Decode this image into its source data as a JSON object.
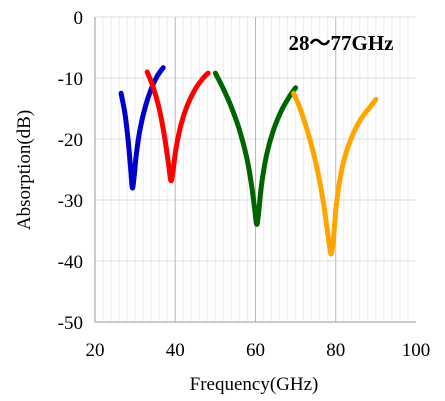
{
  "chart_data": {
    "type": "line",
    "title": "28～77GHz",
    "xlabel": "Frequency(GHz)",
    "ylabel": "Absorption(dB)",
    "xlim": [
      20,
      100
    ],
    "ylim": [
      -50,
      0
    ],
    "x_ticks": [
      "20",
      "40",
      "60",
      "80",
      "100"
    ],
    "y_ticks": [
      "0",
      "-10",
      "-20",
      "-30",
      "-40",
      "-50"
    ],
    "grid": true,
    "series": [
      {
        "color": "#0000cc",
        "x": [
          26.5,
          27.5,
          28.3,
          28.9,
          29.3,
          29.7,
          30.3,
          31.2,
          32.5,
          34.0,
          35.5,
          37.0
        ],
        "y": [
          -12.5,
          -16.0,
          -20.5,
          -25.0,
          -28.0,
          -26.5,
          -22.5,
          -18.5,
          -14.8,
          -11.8,
          -9.7,
          -8.3
        ]
      },
      {
        "color": "#ff0000",
        "x": [
          33.0,
          34.5,
          36.0,
          37.3,
          38.3,
          38.9,
          39.4,
          40.2,
          41.5,
          43.0,
          45.0,
          47.0,
          48.2
        ],
        "y": [
          -9.0,
          -11.5,
          -15.0,
          -19.5,
          -24.0,
          -26.8,
          -25.5,
          -21.5,
          -17.5,
          -14.5,
          -11.8,
          -10.0,
          -9.2
        ]
      },
      {
        "color": "#006400",
        "x": [
          50.0,
          52.0,
          54.0,
          56.0,
          57.8,
          59.0,
          59.8,
          60.3,
          60.8,
          61.5,
          62.8,
          64.5,
          66.5,
          68.5,
          70.0
        ],
        "y": [
          -9.2,
          -11.8,
          -14.8,
          -18.5,
          -23.0,
          -27.5,
          -31.5,
          -34.0,
          -32.0,
          -27.5,
          -22.5,
          -18.5,
          -15.3,
          -13.0,
          -11.6
        ]
      },
      {
        "color": "#ffa500",
        "x": [
          69.5,
          71.0,
          73.0,
          75.0,
          76.7,
          77.8,
          78.5,
          78.9,
          79.4,
          80.2,
          81.5,
          83.5,
          86.0,
          88.5,
          90.0
        ],
        "y": [
          -12.5,
          -14.8,
          -18.8,
          -23.8,
          -29.5,
          -34.5,
          -37.8,
          -38.8,
          -36.5,
          -30.5,
          -25.0,
          -20.5,
          -17.0,
          -14.8,
          -13.5
        ]
      }
    ]
  }
}
